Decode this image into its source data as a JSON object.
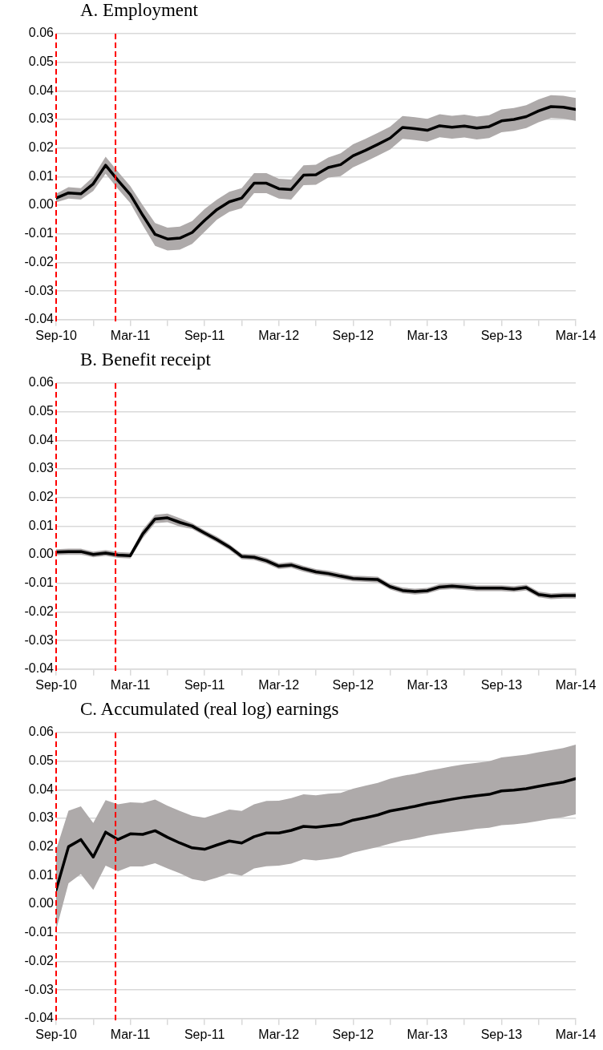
{
  "chart_data": [
    {
      "type": "line",
      "title": "A. Employment",
      "x": [
        "2010-09",
        "2010-10",
        "2010-11",
        "2010-12",
        "2011-01",
        "2011-02",
        "2011-03",
        "2011-04",
        "2011-05",
        "2011-06",
        "2011-07",
        "2011-08",
        "2011-09",
        "2011-10",
        "2011-11",
        "2011-12",
        "2012-01",
        "2012-02",
        "2012-03",
        "2012-04",
        "2012-05",
        "2012-06",
        "2012-07",
        "2012-08",
        "2012-09",
        "2012-10",
        "2012-11",
        "2012-12",
        "2013-01",
        "2013-02",
        "2013-03",
        "2013-04",
        "2013-05",
        "2013-06",
        "2013-07",
        "2013-08",
        "2013-09",
        "2013-10",
        "2013-11",
        "2013-12",
        "2014-01",
        "2014-02",
        "2014-03"
      ],
      "series": [
        {
          "color": "#000000",
          "values": [
            0.0025,
            0.0043,
            0.004,
            0.0075,
            0.014,
            0.0087,
            0.0037,
            -0.0035,
            -0.0102,
            -0.0118,
            -0.0115,
            -0.0095,
            -0.0053,
            -0.0015,
            0.0012,
            0.0025,
            0.0077,
            0.0077,
            0.0058,
            0.0055,
            0.0105,
            0.0107,
            0.0132,
            0.0142,
            0.0173,
            0.0192,
            0.0213,
            0.0235,
            0.0272,
            0.0268,
            0.0262,
            0.0278,
            0.0273,
            0.0277,
            0.027,
            0.0275,
            0.0295,
            0.03,
            0.031,
            0.033,
            0.0345,
            0.0343,
            0.0335
          ],
          "lower": [
            0.001,
            0.0023,
            0.002,
            0.005,
            0.011,
            0.0057,
            0.0007,
            -0.007,
            -0.0142,
            -0.0158,
            -0.0155,
            -0.0135,
            -0.0093,
            -0.005,
            -0.0023,
            -0.001,
            0.0042,
            0.0042,
            0.0023,
            0.002,
            0.007,
            0.0072,
            0.0097,
            0.0102,
            0.0133,
            0.0152,
            0.0173,
            0.0195,
            0.0232,
            0.0228,
            0.0222,
            0.0238,
            0.0233,
            0.0237,
            0.023,
            0.0235,
            0.0255,
            0.026,
            0.027,
            0.029,
            0.0305,
            0.0303,
            0.0295
          ],
          "upper": [
            0.004,
            0.0063,
            0.006,
            0.01,
            0.017,
            0.0117,
            0.0067,
            0,
            -0.0062,
            -0.0078,
            -0.0075,
            -0.0055,
            -0.0013,
            0.002,
            0.0047,
            0.006,
            0.0112,
            0.0112,
            0.0093,
            0.009,
            0.014,
            0.0142,
            0.0167,
            0.0182,
            0.0213,
            0.0232,
            0.0253,
            0.0275,
            0.0312,
            0.0308,
            0.0302,
            0.0318,
            0.0313,
            0.0317,
            0.031,
            0.0315,
            0.0335,
            0.034,
            0.035,
            0.037,
            0.0385,
            0.0383,
            0.0375
          ]
        }
      ],
      "xlim": [
        "2010-09",
        "2014-03"
      ],
      "xticks": [
        {
          "value": "2010-09",
          "label": "Sep-10"
        },
        {
          "value": "2010-12",
          "label": null
        },
        {
          "value": "2011-03",
          "label": "Mar-11"
        },
        {
          "value": "2011-06",
          "label": null
        },
        {
          "value": "2011-09",
          "label": "Sep-11"
        },
        {
          "value": "2011-12",
          "label": null
        },
        {
          "value": "2012-03",
          "label": "Mar-12"
        },
        {
          "value": "2012-06",
          "label": null
        },
        {
          "value": "2012-09",
          "label": "Sep-12"
        },
        {
          "value": "2012-12",
          "label": null
        },
        {
          "value": "2013-03",
          "label": "Mar-13"
        },
        {
          "value": "2013-06",
          "label": null
        },
        {
          "value": "2013-09",
          "label": "Sep-13"
        },
        {
          "value": "2013-12",
          "label": null
        },
        {
          "value": "2014-03",
          "label": "Mar-14"
        }
      ],
      "ylim": [
        -0.04,
        0.06
      ],
      "yticks": [
        {
          "value": -0.04,
          "label": "-0.04"
        },
        {
          "value": -0.03,
          "label": "-0.03"
        },
        {
          "value": -0.02,
          "label": "-0.02"
        },
        {
          "value": -0.01,
          "label": "-0.01"
        },
        {
          "value": 0,
          "label": "0.00"
        },
        {
          "value": 0.01,
          "label": "0.01"
        },
        {
          "value": 0.02,
          "label": "0.02"
        },
        {
          "value": 0.03,
          "label": "0.03"
        },
        {
          "value": 0.04,
          "label": "0.04"
        },
        {
          "value": 0.05,
          "label": "0.05"
        },
        {
          "value": 0.06,
          "label": "0.06"
        }
      ],
      "ref_lines": [
        {
          "axis": "x",
          "value": "2010-09",
          "color": "#ff0000",
          "line_style": "dashed"
        },
        {
          "axis": "x",
          "value": "2011-01-25",
          "color": "#ff0000",
          "line_style": "dashed"
        }
      ],
      "grid": "y",
      "marker": "none",
      "line_style": "solid"
    },
    {
      "type": "line",
      "title": "B. Benefit receipt",
      "x": [
        "2010-09",
        "2010-10",
        "2010-11",
        "2010-12",
        "2011-01",
        "2011-02",
        "2011-03",
        "2011-04",
        "2011-05",
        "2011-06",
        "2011-07",
        "2011-08",
        "2011-09",
        "2011-10",
        "2011-11",
        "2011-12",
        "2012-01",
        "2012-02",
        "2012-03",
        "2012-04",
        "2012-05",
        "2012-06",
        "2012-07",
        "2012-08",
        "2012-09",
        "2012-10",
        "2012-11",
        "2012-12",
        "2013-01",
        "2013-02",
        "2013-03",
        "2013-04",
        "2013-05",
        "2013-06",
        "2013-07",
        "2013-08",
        "2013-09",
        "2013-10",
        "2013-11",
        "2013-12",
        "2014-01",
        "2014-02",
        "2014-03"
      ],
      "series": [
        {
          "color": "#000000",
          "values": [
            0.0009,
            0.0011,
            0.0011,
            0.0001,
            0.0006,
            -0.0001,
            -0.0003,
            0.0073,
            0.0125,
            0.0129,
            0.0113,
            0.01,
            0.0076,
            0.0053,
            0.0027,
            -0.0006,
            -0.0009,
            -0.0021,
            -0.004,
            -0.0036,
            -0.0049,
            -0.006,
            -0.0066,
            -0.0075,
            -0.0083,
            -0.0085,
            -0.0087,
            -0.0112,
            -0.0125,
            -0.0129,
            -0.0126,
            -0.0113,
            -0.011,
            -0.0113,
            -0.0117,
            -0.0117,
            -0.0117,
            -0.012,
            -0.0115,
            -0.0139,
            -0.0145,
            -0.0143,
            -0.0143
          ],
          "lower": [
            -0.0001,
            0.0001,
            0.0001,
            -0.0009,
            -0.0004,
            -0.0011,
            -0.0013,
            0.0058,
            0.011,
            0.0114,
            0.0098,
            0.009,
            0.0066,
            0.0043,
            0.0017,
            -0.0016,
            -0.0019,
            -0.0031,
            -0.005,
            -0.0046,
            -0.0059,
            -0.007,
            -0.0076,
            -0.0085,
            -0.0093,
            -0.0095,
            -0.0097,
            -0.0122,
            -0.0135,
            -0.0139,
            -0.0136,
            -0.0123,
            -0.012,
            -0.0123,
            -0.0127,
            -0.0127,
            -0.0127,
            -0.013,
            -0.0125,
            -0.0149,
            -0.0155,
            -0.0153,
            -0.0153
          ],
          "upper": [
            0.0019,
            0.0021,
            0.0021,
            0.0011,
            0.0016,
            0.0009,
            0.0007,
            0.0088,
            0.014,
            0.0144,
            0.0128,
            0.011,
            0.0086,
            0.0063,
            0.0037,
            0.0004,
            0.0001,
            -0.0011,
            -0.003,
            -0.0026,
            -0.0039,
            -0.005,
            -0.0056,
            -0.0065,
            -0.0073,
            -0.0075,
            -0.0077,
            -0.0102,
            -0.0115,
            -0.0119,
            -0.0116,
            -0.0103,
            -0.01,
            -0.0103,
            -0.0107,
            -0.0107,
            -0.0107,
            -0.011,
            -0.0105,
            -0.0129,
            -0.0135,
            -0.0133,
            -0.0133
          ]
        }
      ],
      "xlim": [
        "2010-09",
        "2014-03"
      ],
      "xticks": [
        {
          "value": "2010-09",
          "label": "Sep-10"
        },
        {
          "value": "2010-12",
          "label": null
        },
        {
          "value": "2011-03",
          "label": "Mar-11"
        },
        {
          "value": "2011-06",
          "label": null
        },
        {
          "value": "2011-09",
          "label": "Sep-11"
        },
        {
          "value": "2011-12",
          "label": null
        },
        {
          "value": "2012-03",
          "label": "Mar-12"
        },
        {
          "value": "2012-06",
          "label": null
        },
        {
          "value": "2012-09",
          "label": "Sep-12"
        },
        {
          "value": "2012-12",
          "label": null
        },
        {
          "value": "2013-03",
          "label": "Mar-13"
        },
        {
          "value": "2013-06",
          "label": null
        },
        {
          "value": "2013-09",
          "label": "Sep-13"
        },
        {
          "value": "2013-12",
          "label": null
        },
        {
          "value": "2014-03",
          "label": "Mar-14"
        }
      ],
      "ylim": [
        -0.04,
        0.06
      ],
      "yticks": [
        {
          "value": -0.04,
          "label": "-0.04"
        },
        {
          "value": -0.03,
          "label": "-0.03"
        },
        {
          "value": -0.02,
          "label": "-0.02"
        },
        {
          "value": -0.01,
          "label": "-0.01"
        },
        {
          "value": 0,
          "label": "0.00"
        },
        {
          "value": 0.01,
          "label": "0.01"
        },
        {
          "value": 0.02,
          "label": "0.02"
        },
        {
          "value": 0.03,
          "label": "0.03"
        },
        {
          "value": 0.04,
          "label": "0.04"
        },
        {
          "value": 0.05,
          "label": "0.05"
        },
        {
          "value": 0.06,
          "label": "0.06"
        }
      ],
      "ref_lines": [
        {
          "axis": "x",
          "value": "2010-09",
          "color": "#ff0000",
          "line_style": "dashed"
        },
        {
          "axis": "x",
          "value": "2011-01-25",
          "color": "#ff0000",
          "line_style": "dashed"
        }
      ],
      "grid": "y",
      "marker": "none",
      "line_style": "solid"
    },
    {
      "type": "line",
      "title": "C. Accumulated (real log) earnings",
      "x": [
        "2010-09",
        "2010-10",
        "2010-11",
        "2010-12",
        "2011-01",
        "2011-02",
        "2011-03",
        "2011-04",
        "2011-05",
        "2011-06",
        "2011-07",
        "2011-08",
        "2011-09",
        "2011-10",
        "2011-11",
        "2011-12",
        "2012-01",
        "2012-02",
        "2012-03",
        "2012-04",
        "2012-05",
        "2012-06",
        "2012-07",
        "2012-08",
        "2012-09",
        "2012-10",
        "2012-11",
        "2012-12",
        "2013-01",
        "2013-02",
        "2013-03",
        "2013-04",
        "2013-05",
        "2013-06",
        "2013-07",
        "2013-08",
        "2013-09",
        "2013-10",
        "2013-11",
        "2013-12",
        "2014-01",
        "2014-02",
        "2014-03"
      ],
      "series": [
        {
          "color": "#000000",
          "values": [
            0.005,
            0.0201,
            0.0226,
            0.0165,
            0.0252,
            0.0226,
            0.0246,
            0.0244,
            0.0257,
            0.0234,
            0.0214,
            0.0197,
            0.0192,
            0.0207,
            0.0221,
            0.0214,
            0.0236,
            0.0249,
            0.0249,
            0.0258,
            0.0272,
            0.0269,
            0.0274,
            0.0279,
            0.0294,
            0.0302,
            0.0312,
            0.0326,
            0.0334,
            0.0342,
            0.0352,
            0.0359,
            0.0367,
            0.0374,
            0.0379,
            0.0384,
            0.0396,
            0.0399,
            0.0404,
            0.0412,
            0.042,
            0.0427,
            0.0439
          ],
          "lower": [
            -0.009,
            0.0073,
            0.0105,
            0.005,
            0.0135,
            0.0115,
            0.0132,
            0.0132,
            0.0143,
            0.0125,
            0.0108,
            0.0088,
            0.008,
            0.0093,
            0.0108,
            0.01,
            0.0125,
            0.0133,
            0.0135,
            0.0142,
            0.0157,
            0.0153,
            0.0158,
            0.0165,
            0.018,
            0.019,
            0.02,
            0.0212,
            0.0222,
            0.0229,
            0.0239,
            0.0246,
            0.0252,
            0.0257,
            0.0264,
            0.0267,
            0.0276,
            0.0279,
            0.0284,
            0.0291,
            0.0299,
            0.0304,
            0.0314
          ],
          "upper": [
            0.019,
            0.0327,
            0.0342,
            0.0284,
            0.0364,
            0.0349,
            0.0356,
            0.0354,
            0.0366,
            0.0344,
            0.0326,
            0.0309,
            0.0302,
            0.0316,
            0.0331,
            0.0326,
            0.0349,
            0.0361,
            0.0362,
            0.0371,
            0.0384,
            0.0381,
            0.0386,
            0.0389,
            0.0404,
            0.0414,
            0.0424,
            0.0439,
            0.0449,
            0.0456,
            0.0466,
            0.0474,
            0.0482,
            0.0489,
            0.0494,
            0.05,
            0.0513,
            0.0518,
            0.0523,
            0.0531,
            0.0538,
            0.0546,
            0.0558
          ]
        }
      ],
      "xlim": [
        "2010-09",
        "2014-03"
      ],
      "xticks": [
        {
          "value": "2010-09",
          "label": "Sep-10"
        },
        {
          "value": "2010-12",
          "label": null
        },
        {
          "value": "2011-03",
          "label": "Mar-11"
        },
        {
          "value": "2011-06",
          "label": null
        },
        {
          "value": "2011-09",
          "label": "Sep-11"
        },
        {
          "value": "2011-12",
          "label": null
        },
        {
          "value": "2012-03",
          "label": "Mar-12"
        },
        {
          "value": "2012-06",
          "label": null
        },
        {
          "value": "2012-09",
          "label": "Sep-12"
        },
        {
          "value": "2012-12",
          "label": null
        },
        {
          "value": "2013-03",
          "label": "Mar-13"
        },
        {
          "value": "2013-06",
          "label": null
        },
        {
          "value": "2013-09",
          "label": "Sep-13"
        },
        {
          "value": "2013-12",
          "label": null
        },
        {
          "value": "2014-03",
          "label": "Mar-14"
        }
      ],
      "ylim": [
        -0.04,
        0.06
      ],
      "yticks": [
        {
          "value": -0.04,
          "label": "-0.04"
        },
        {
          "value": -0.03,
          "label": "-0.03"
        },
        {
          "value": -0.02,
          "label": "-0.02"
        },
        {
          "value": -0.01,
          "label": "-0.01"
        },
        {
          "value": 0,
          "label": "0.00"
        },
        {
          "value": 0.01,
          "label": "0.01"
        },
        {
          "value": 0.02,
          "label": "0.02"
        },
        {
          "value": 0.03,
          "label": "0.03"
        },
        {
          "value": 0.04,
          "label": "0.04"
        },
        {
          "value": 0.05,
          "label": "0.05"
        },
        {
          "value": 0.06,
          "label": "0.06"
        }
      ],
      "ref_lines": [
        {
          "axis": "x",
          "value": "2010-09",
          "color": "#ff0000",
          "line_style": "dashed"
        },
        {
          "axis": "x",
          "value": "2011-01-25",
          "color": "#ff0000",
          "line_style": "dashed"
        }
      ],
      "grid": "y",
      "marker": "none",
      "line_style": "solid"
    }
  ]
}
